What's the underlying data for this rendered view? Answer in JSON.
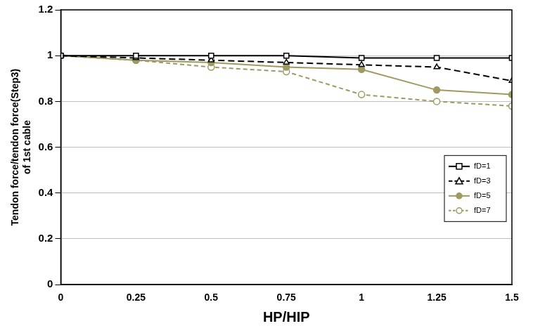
{
  "chart_data": {
    "type": "line",
    "x_label": "HP/HIP",
    "y_label": [
      "Tendon force/tendon force(Step3)",
      "of 1st cable"
    ],
    "x": [
      0,
      0.25,
      0.5,
      0.75,
      1,
      1.25,
      1.5
    ],
    "xlim": [
      0,
      1.5
    ],
    "xticks": [
      0,
      0.25,
      0.5,
      0.75,
      1,
      1.25,
      1.5
    ],
    "ylim": [
      0,
      1.2
    ],
    "yticks": [
      0,
      0.2,
      0.4,
      0.6,
      0.8,
      1,
      1.2
    ],
    "grid": "y",
    "legend": "right",
    "series": [
      {
        "name": "fD=1",
        "color": "#000000",
        "marker": "open-square",
        "line_style": "solid",
        "values": [
          1,
          1,
          1,
          1,
          0.99,
          0.99,
          0.99
        ]
      },
      {
        "name": "fD=3",
        "color": "#000000",
        "marker": "open-triangle",
        "line_style": "dashed",
        "values": [
          1,
          0.99,
          0.98,
          0.97,
          0.96,
          0.95,
          0.89
        ]
      },
      {
        "name": "fD=5",
        "color": "#9e9a62",
        "marker": "filled-circle",
        "line_style": "solid",
        "values": [
          1,
          0.98,
          0.97,
          0.95,
          0.94,
          0.85,
          0.83
        ]
      },
      {
        "name": "fD=7",
        "color": "#9e9a62",
        "marker": "open-circle",
        "line_style": "dashed",
        "values": [
          1,
          0.98,
          0.95,
          0.93,
          0.83,
          0.8,
          0.78
        ]
      }
    ]
  }
}
